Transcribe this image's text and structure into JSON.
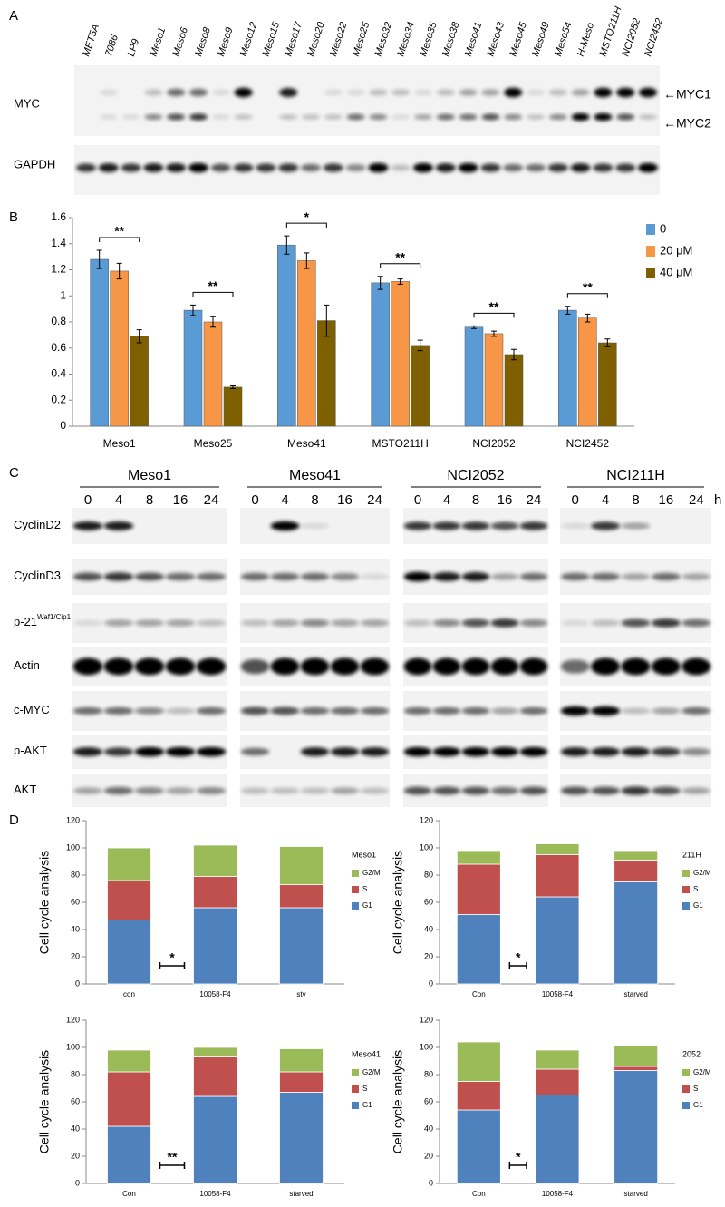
{
  "panel_labels": [
    "A",
    "B",
    "C",
    "D"
  ],
  "blot_a": {
    "lanes": [
      "MET5A",
      "7086",
      "LP9",
      "Meso1",
      "Meso6",
      "Meso8",
      "Meso9",
      "Meso12",
      "Meso15",
      "Meso17",
      "Meso20",
      "Meso22",
      "Meso25",
      "Meso32",
      "Meso34",
      "Meso35",
      "Meso38",
      "Meso41",
      "Meso43",
      "Meso45",
      "Meso49",
      "Meso54",
      "H-Meso",
      "MSTO211H",
      "NCI2052",
      "NCI2452"
    ],
    "rows": [
      "MYC",
      "GAPDH"
    ],
    "markers": [
      "←MYC1",
      "←MYC2"
    ]
  },
  "blot_c": {
    "groups": [
      "Meso1",
      "Meso41",
      "NCI2052",
      "NCI211H"
    ],
    "timepoints": [
      "0",
      "4",
      "8",
      "16",
      "24"
    ],
    "time_unit": "h",
    "rows": [
      {
        "label": "CyclinD2"
      },
      {
        "label": "CyclinD3"
      },
      {
        "label": "p-21",
        "superscript": "Waf1/Cip1"
      },
      {
        "label": "Actin"
      },
      {
        "label": "c-MYC"
      },
      {
        "label": "p-AKT"
      },
      {
        "label": "AKT"
      }
    ]
  },
  "chart_data": [
    {
      "type": "bar",
      "categories": [
        "Meso1",
        "Meso25",
        "Meso41",
        "MSTO211H",
        "NCI2052",
        "NCI2452"
      ],
      "series": [
        {
          "name": "0",
          "color": "#5b9bd5",
          "values": [
            1.28,
            0.89,
            1.39,
            1.1,
            0.76,
            0.89
          ],
          "errors": [
            0.07,
            0.04,
            0.07,
            0.05,
            0.01,
            0.03
          ]
        },
        {
          "name": "20 μM",
          "color": "#f79646",
          "values": [
            1.19,
            0.8,
            1.27,
            1.11,
            0.71,
            0.83
          ],
          "errors": [
            0.06,
            0.04,
            0.06,
            0.02,
            0.02,
            0.03
          ]
        },
        {
          "name": "40 μM",
          "color": "#7f6000",
          "values": [
            0.69,
            0.3,
            0.81,
            0.62,
            0.55,
            0.64
          ],
          "errors": [
            0.05,
            0.01,
            0.12,
            0.04,
            0.04,
            0.03
          ]
        }
      ],
      "significance": [
        "**",
        "**",
        "*",
        "**",
        "**",
        "**"
      ],
      "ylim": [
        0,
        1.6
      ],
      "yticks": [
        0,
        0.2,
        0.4,
        0.6,
        0.8,
        1,
        1.2,
        1.4,
        1.6
      ]
    },
    {
      "type": "stacked_bar",
      "y_label": "Cell cycle analysis",
      "legend_title": "Meso1",
      "categories": [
        "con",
        "10058-F4",
        "stv"
      ],
      "series": [
        {
          "name": "G1",
          "color": "#4f81bd",
          "values": [
            47,
            56,
            56
          ]
        },
        {
          "name": "S",
          "color": "#c0504d",
          "values": [
            29,
            23,
            17
          ]
        },
        {
          "name": "G2/M",
          "color": "#9bbb59",
          "values": [
            24,
            23,
            28
          ]
        }
      ],
      "significance": "*",
      "ylim": [
        0,
        120
      ],
      "yticks": [
        0,
        20,
        40,
        60,
        80,
        100,
        120
      ]
    },
    {
      "type": "stacked_bar",
      "y_label": "Cell cycle analysis",
      "legend_title": "211H",
      "categories": [
        "Con",
        "10058-F4",
        "starved"
      ],
      "series": [
        {
          "name": "G1",
          "color": "#4f81bd",
          "values": [
            51,
            64,
            75
          ]
        },
        {
          "name": "S",
          "color": "#c0504d",
          "values": [
            37,
            31,
            16
          ]
        },
        {
          "name": "G2/M",
          "color": "#9bbb59",
          "values": [
            10,
            8,
            7
          ]
        }
      ],
      "significance": "*",
      "ylim": [
        0,
        120
      ],
      "yticks": [
        0,
        20,
        40,
        60,
        80,
        100,
        120
      ]
    },
    {
      "type": "stacked_bar",
      "y_label": "Cell cycle analysis",
      "legend_title": "Meso41",
      "categories": [
        "Con",
        "10058-F4",
        "starved"
      ],
      "series": [
        {
          "name": "G1",
          "color": "#4f81bd",
          "values": [
            42,
            64,
            67
          ]
        },
        {
          "name": "S",
          "color": "#c0504d",
          "values": [
            40,
            29,
            15
          ]
        },
        {
          "name": "G2/M",
          "color": "#9bbb59",
          "values": [
            16,
            7,
            17
          ]
        }
      ],
      "significance": "**",
      "ylim": [
        0,
        120
      ],
      "yticks": [
        0,
        20,
        40,
        60,
        80,
        100,
        120
      ]
    },
    {
      "type": "stacked_bar",
      "y_label": "Cell cycle analysis",
      "legend_title": "2052",
      "categories": [
        "Con",
        "10058-F4",
        "starved"
      ],
      "series": [
        {
          "name": "G1",
          "color": "#4f81bd",
          "values": [
            54,
            65,
            83
          ]
        },
        {
          "name": "S",
          "color": "#c0504d",
          "values": [
            21,
            19,
            3
          ]
        },
        {
          "name": "G2/M",
          "color": "#9bbb59",
          "values": [
            29,
            14,
            15
          ]
        }
      ],
      "significance": "*",
      "ylim": [
        0,
        120
      ],
      "yticks": [
        0,
        20,
        40,
        60,
        80,
        100,
        120
      ]
    }
  ]
}
